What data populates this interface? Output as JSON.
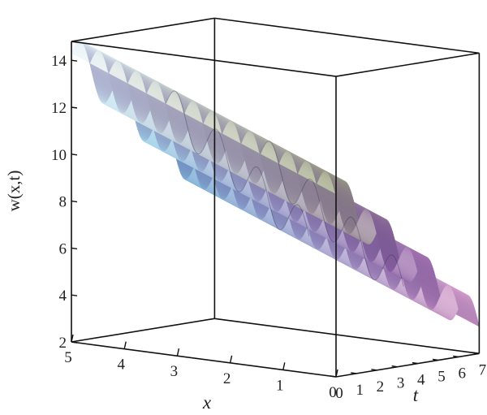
{
  "chart_data": {
    "type": "surface3d",
    "z_label": "w(x,t)",
    "x_label": "x",
    "t_label": "t",
    "z_ticks": [
      2,
      4,
      6,
      8,
      10,
      12,
      14
    ],
    "x_ticks": [
      0,
      1,
      2,
      3,
      4,
      5
    ],
    "t_ticks": [
      0,
      1,
      2,
      3,
      4,
      5,
      6,
      7
    ],
    "x_range": [
      0,
      5
    ],
    "t_range": [
      0,
      7
    ],
    "z_range": [
      2,
      14.8
    ],
    "surface": {
      "base_value_at_x5_t0": 14.3,
      "slope_per_unit_x": 0.9,
      "slope_per_unit_t": 0.95,
      "amplitude": 0.9,
      "oscillations_along_t": 3.5,
      "colors": {
        "x5_start": "#eef6fb",
        "x5_mid": "#9fd6ec",
        "x5_end": "#5a94c8",
        "x0_start": "#9aa27a",
        "x0_mid": "#8a5aa0",
        "x0_end": "#e7a9d2",
        "shade": "#5b3f86"
      }
    }
  }
}
